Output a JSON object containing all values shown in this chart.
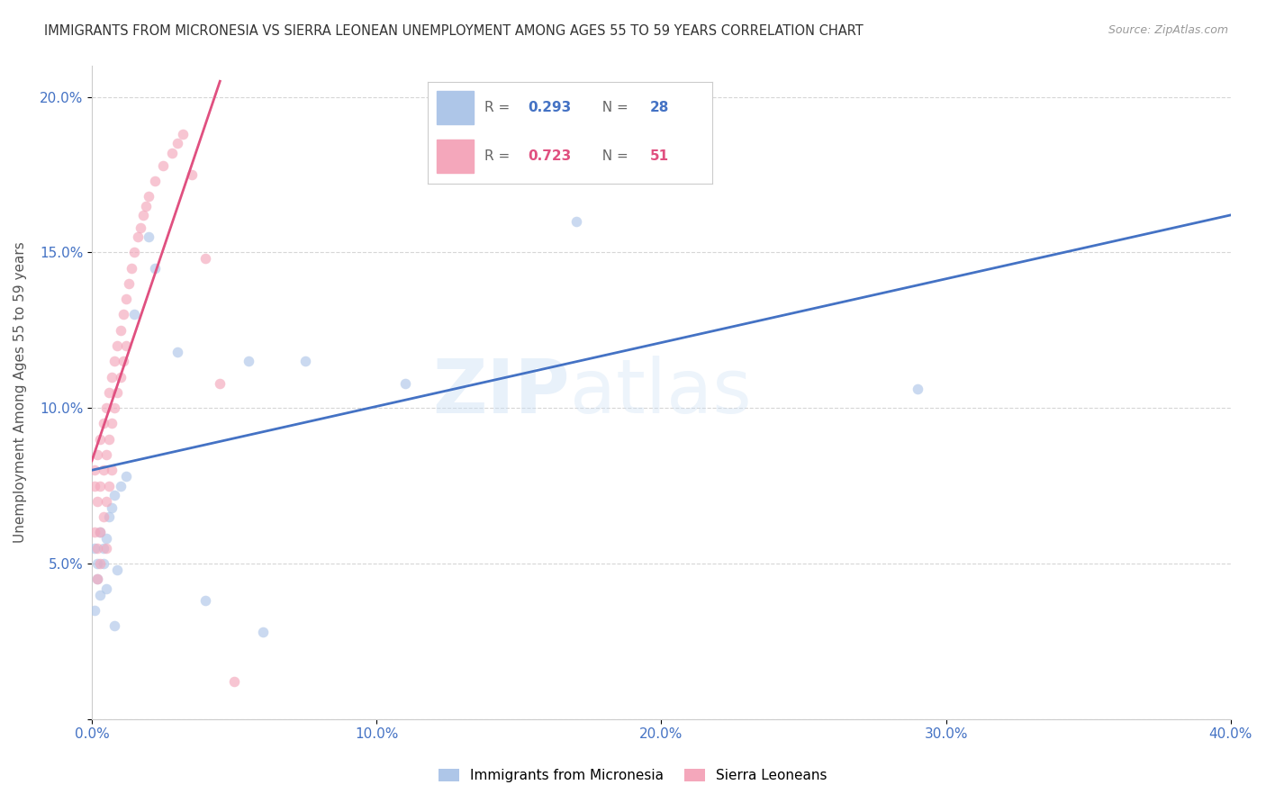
{
  "title": "IMMIGRANTS FROM MICRONESIA VS SIERRA LEONEAN UNEMPLOYMENT AMONG AGES 55 TO 59 YEARS CORRELATION CHART",
  "source": "Source: ZipAtlas.com",
  "ylabel": "Unemployment Among Ages 55 to 59 years",
  "xlim": [
    0.0,
    0.4
  ],
  "ylim": [
    0.0,
    0.21
  ],
  "xticks": [
    0.0,
    0.1,
    0.2,
    0.3,
    0.4
  ],
  "xticklabels": [
    "0.0%",
    "10.0%",
    "20.0%",
    "30.0%",
    "40.0%"
  ],
  "yticks": [
    0.0,
    0.05,
    0.1,
    0.15,
    0.2
  ],
  "yticklabels": [
    "",
    "5.0%",
    "10.0%",
    "15.0%",
    "20.0%"
  ],
  "legend1_label": "Immigrants from Micronesia",
  "legend2_label": "Sierra Leoneans",
  "R1": 0.293,
  "N1": 28,
  "R2": 0.723,
  "N2": 51,
  "color1": "#aec6e8",
  "color2": "#f4a7bb",
  "line_color1": "#4472c4",
  "line_color2": "#e05080",
  "tick_color": "#4472c4",
  "scatter_alpha": 0.65,
  "scatter_size": 70,
  "background_color": "#ffffff",
  "watermark": "ZIPatlas",
  "micronesia_x": [
    0.001,
    0.001,
    0.002,
    0.002,
    0.003,
    0.003,
    0.004,
    0.004,
    0.005,
    0.005,
    0.006,
    0.007,
    0.008,
    0.009,
    0.01,
    0.012,
    0.015,
    0.02,
    0.022,
    0.03,
    0.04,
    0.055,
    0.06,
    0.075,
    0.11,
    0.17,
    0.29,
    0.008
  ],
  "micronesia_y": [
    0.055,
    0.035,
    0.05,
    0.045,
    0.06,
    0.04,
    0.055,
    0.05,
    0.058,
    0.042,
    0.065,
    0.068,
    0.072,
    0.048,
    0.075,
    0.078,
    0.13,
    0.155,
    0.145,
    0.118,
    0.038,
    0.115,
    0.028,
    0.115,
    0.108,
    0.16,
    0.106,
    0.03
  ],
  "sierra_x": [
    0.001,
    0.001,
    0.001,
    0.002,
    0.002,
    0.002,
    0.002,
    0.003,
    0.003,
    0.003,
    0.003,
    0.004,
    0.004,
    0.004,
    0.005,
    0.005,
    0.005,
    0.005,
    0.006,
    0.006,
    0.006,
    0.007,
    0.007,
    0.007,
    0.008,
    0.008,
    0.009,
    0.009,
    0.01,
    0.01,
    0.011,
    0.011,
    0.012,
    0.012,
    0.013,
    0.014,
    0.015,
    0.016,
    0.017,
    0.018,
    0.019,
    0.02,
    0.022,
    0.025,
    0.028,
    0.03,
    0.032,
    0.035,
    0.04,
    0.045,
    0.05
  ],
  "sierra_y": [
    0.08,
    0.075,
    0.06,
    0.085,
    0.07,
    0.055,
    0.045,
    0.09,
    0.075,
    0.06,
    0.05,
    0.095,
    0.08,
    0.065,
    0.1,
    0.085,
    0.07,
    0.055,
    0.105,
    0.09,
    0.075,
    0.11,
    0.095,
    0.08,
    0.115,
    0.1,
    0.12,
    0.105,
    0.125,
    0.11,
    0.13,
    0.115,
    0.135,
    0.12,
    0.14,
    0.145,
    0.15,
    0.155,
    0.158,
    0.162,
    0.165,
    0.168,
    0.173,
    0.178,
    0.182,
    0.185,
    0.188,
    0.175,
    0.148,
    0.108,
    0.012
  ],
  "blue_line_x": [
    0.0,
    0.4
  ],
  "blue_line_y": [
    0.08,
    0.162
  ],
  "pink_line_x": [
    0.0,
    0.045
  ],
  "pink_line_y": [
    0.083,
    0.205
  ]
}
